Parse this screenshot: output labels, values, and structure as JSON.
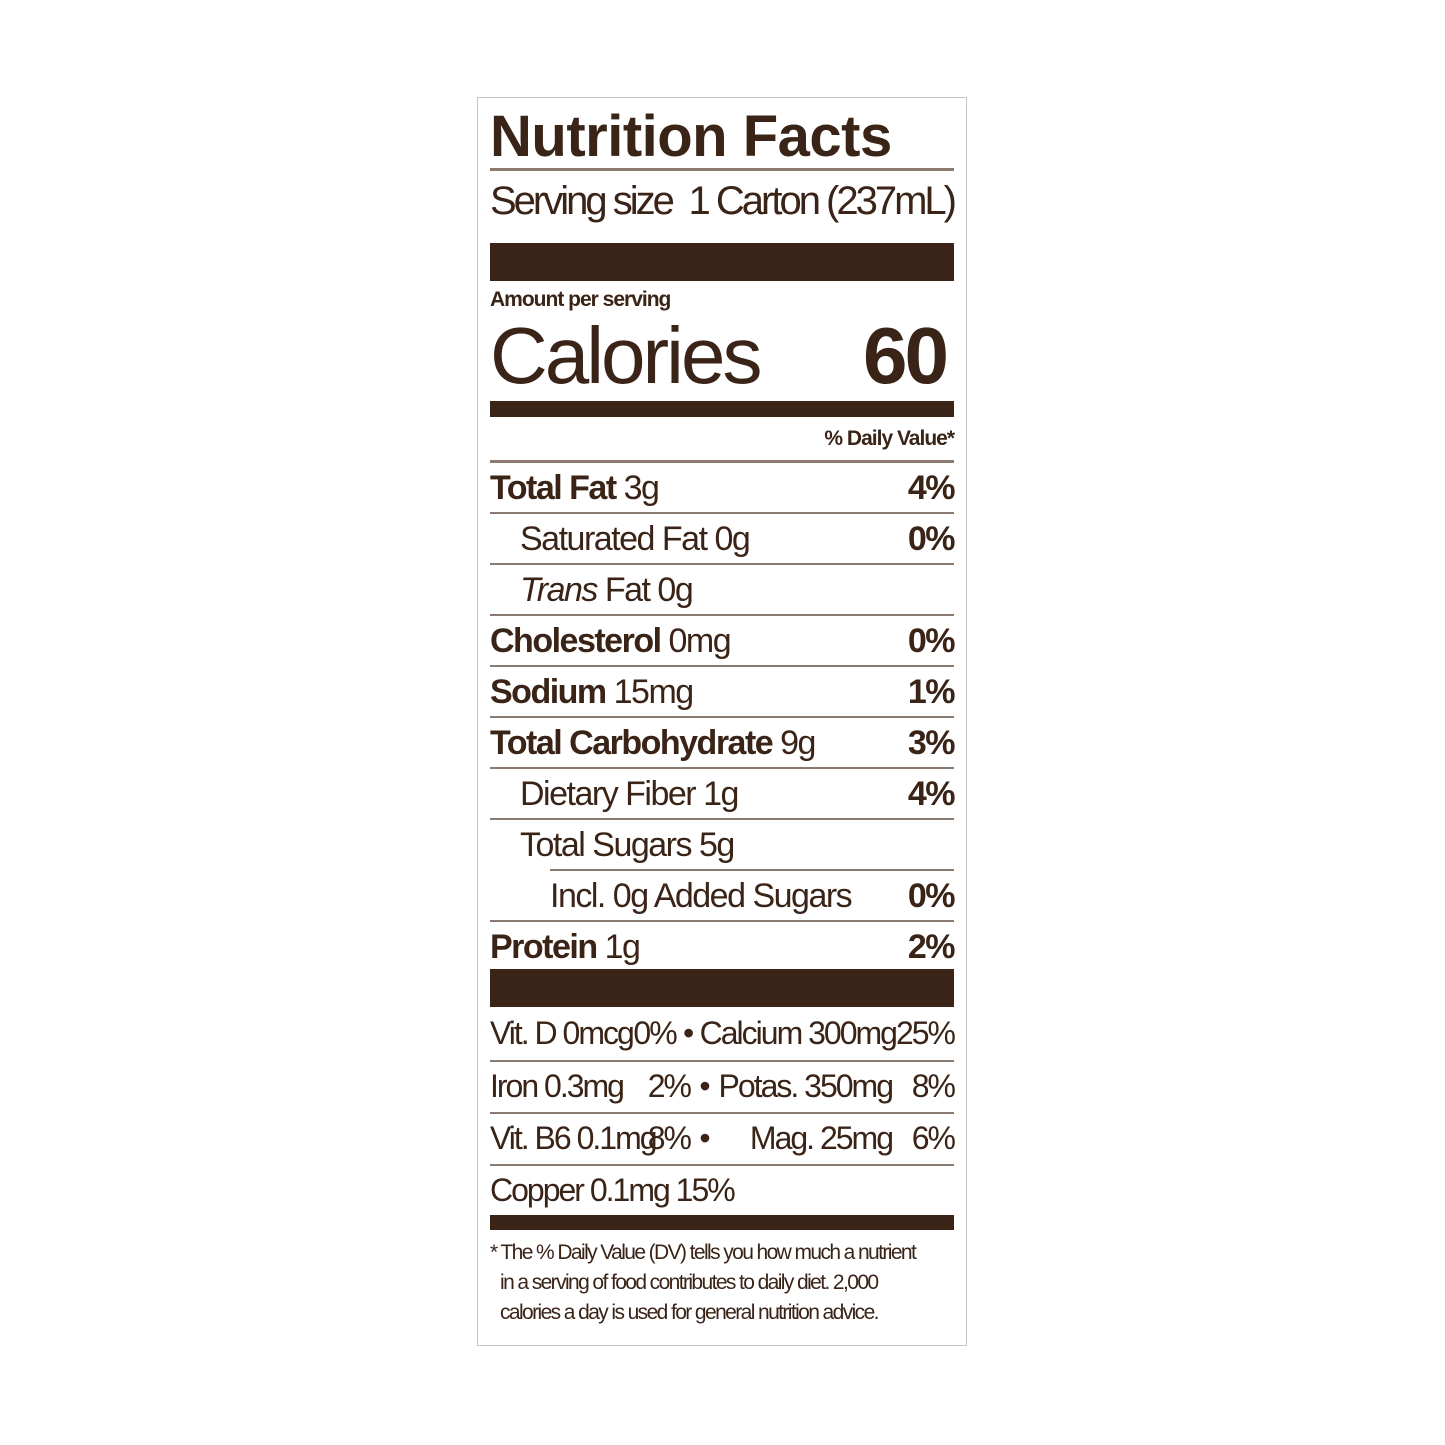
{
  "title": "Nutrition Facts",
  "serving": {
    "label": "Serving size",
    "value": "1 Carton (237mL)"
  },
  "amount_per_serving": "Amount per serving",
  "calories": {
    "label": "Calories",
    "value": "60"
  },
  "daily_value_header": "% Daily Value*",
  "nutrients": [
    {
      "name": "Total Fat",
      "amount": "3g",
      "dv": "4%"
    },
    {
      "name": "Saturated Fat",
      "amount": "0g",
      "dv": "0%"
    },
    {
      "name": "Trans",
      "name_suffix": "Fat",
      "amount": "0g",
      "dv": ""
    },
    {
      "name": "Cholesterol",
      "amount": "0mg",
      "dv": "0%"
    },
    {
      "name": "Sodium",
      "amount": "15mg",
      "dv": "1%"
    },
    {
      "name": "Total Carbohydrate",
      "amount": "9g",
      "dv": "3%"
    },
    {
      "name": "Dietary Fiber",
      "amount": "1g",
      "dv": "4%"
    },
    {
      "name": "Total Sugars",
      "amount": "5g",
      "dv": ""
    },
    {
      "name": "Incl. 0g Added Sugars",
      "amount": "",
      "dv": "0%"
    },
    {
      "name": "Protein",
      "amount": "1g",
      "dv": "2%"
    }
  ],
  "vitamins": [
    {
      "left": "Vit. D 0mcg",
      "left_dv": "0%",
      "bullet": "•",
      "right": "Calcium 300mg",
      "right_dv": "25%"
    },
    {
      "left": "Iron 0.3mg",
      "left_dv": "2%",
      "bullet": "•",
      "right": "Potas. 350mg",
      "right_dv": "8%"
    },
    {
      "left": "Vit. B6 0.1mg",
      "left_dv": "8%",
      "bullet": "•",
      "right": "Mag. 25mg",
      "right_dv": "6%"
    },
    {
      "left": "Copper 0.1mg",
      "left_dv": "15%",
      "bullet": "",
      "right": "",
      "right_dv": ""
    }
  ],
  "footnote": [
    "* The % Daily Value (DV) tells you how much a nutrient",
    "in a serving of food contributes to daily diet. 2,000",
    "calories a day is used for general nutrition advice."
  ],
  "colors": {
    "ink": "#3a2418",
    "rule": "#8a7a70"
  }
}
